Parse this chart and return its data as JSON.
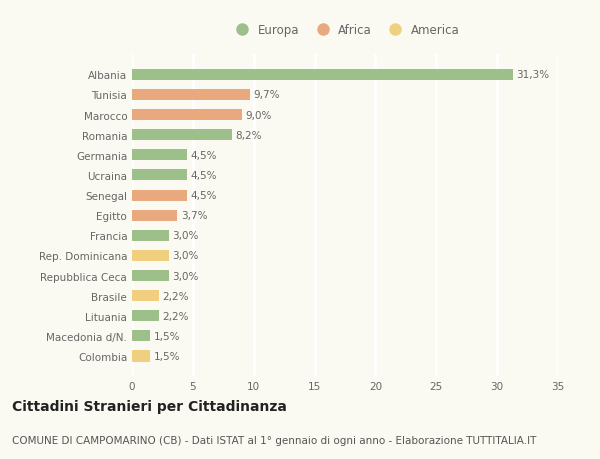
{
  "countries": [
    "Albania",
    "Tunisia",
    "Marocco",
    "Romania",
    "Germania",
    "Ucraina",
    "Senegal",
    "Egitto",
    "Francia",
    "Rep. Dominicana",
    "Repubblica Ceca",
    "Brasile",
    "Lituania",
    "Macedonia d/N.",
    "Colombia"
  ],
  "values": [
    31.3,
    9.7,
    9.0,
    8.2,
    4.5,
    4.5,
    4.5,
    3.7,
    3.0,
    3.0,
    3.0,
    2.2,
    2.2,
    1.5,
    1.5
  ],
  "labels": [
    "31,3%",
    "9,7%",
    "9,0%",
    "8,2%",
    "4,5%",
    "4,5%",
    "4,5%",
    "3,7%",
    "3,0%",
    "3,0%",
    "3,0%",
    "2,2%",
    "2,2%",
    "1,5%",
    "1,5%"
  ],
  "continents": [
    "Europa",
    "Africa",
    "Africa",
    "Europa",
    "Europa",
    "Europa",
    "Africa",
    "Africa",
    "Europa",
    "America",
    "Europa",
    "America",
    "Europa",
    "Europa",
    "America"
  ],
  "colors": {
    "Europa": "#9dc08b",
    "Africa": "#e8a97e",
    "America": "#f0d080"
  },
  "background_color": "#fafaf2",
  "grid_color": "#ffffff",
  "bar_height": 0.55,
  "xlim": [
    0,
    35
  ],
  "xticks": [
    0,
    5,
    10,
    15,
    20,
    25,
    30,
    35
  ],
  "title": "Cittadini Stranieri per Cittadinanza",
  "subtitle": "COMUNE DI CAMPOMARINO (CB) - Dati ISTAT al 1° gennaio di ogni anno - Elaborazione TUTTITALIA.IT",
  "title_fontsize": 10,
  "subtitle_fontsize": 7.5,
  "label_fontsize": 7.5,
  "tick_fontsize": 7.5,
  "legend_fontsize": 8.5
}
